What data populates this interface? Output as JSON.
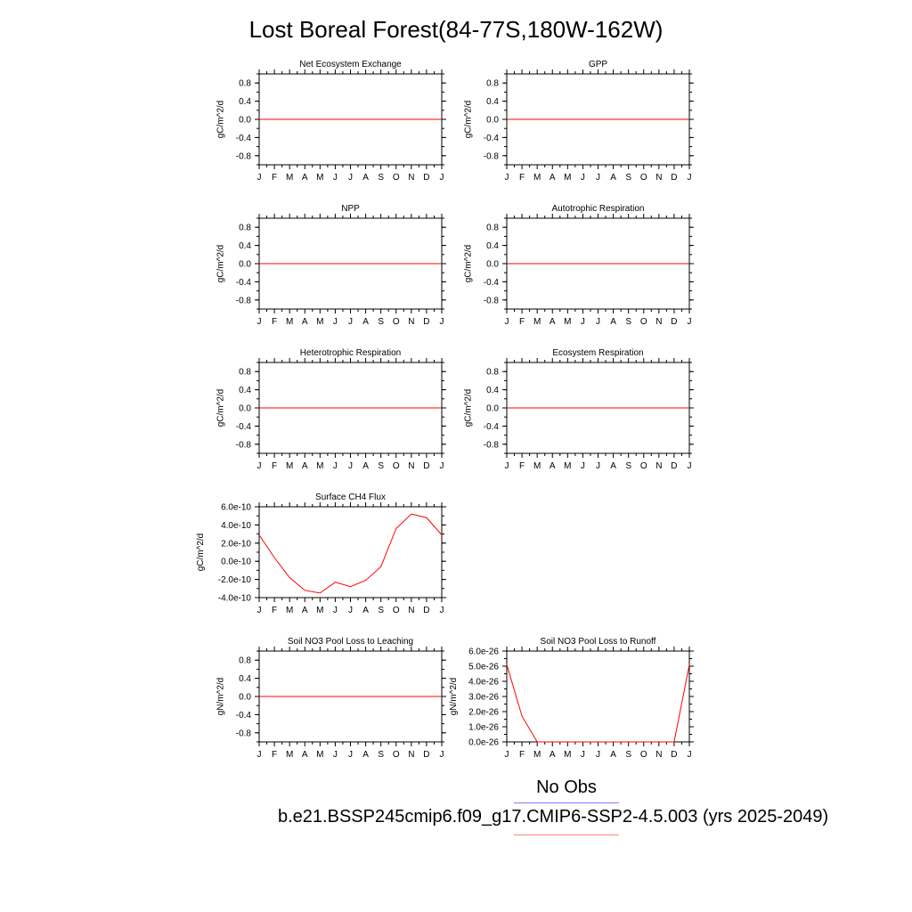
{
  "title": "Lost Boreal Forest(84-77S,180W-162W)",
  "legend": {
    "obs_label": "No Obs",
    "obs_color": "#8080ff",
    "model_label": "b.e21.BSSP245cmip6.f09_g17.CMIP6-SSP2-4.5.003 (yrs 2025-2049)",
    "model_color": "#ff8080"
  },
  "months": [
    "J",
    "F",
    "M",
    "A",
    "M",
    "J",
    "J",
    "A",
    "S",
    "O",
    "N",
    "D",
    "J"
  ],
  "line_color": "#ff0000",
  "chart_data": [
    {
      "type": "line",
      "title": "Net Ecosystem Exchange",
      "ylabel": "gC/m^2/d",
      "ylim": [
        -1,
        1
      ],
      "yticks": [
        0.8,
        0.4,
        0.0,
        -0.4,
        -0.8
      ],
      "ytick_labels": [
        "0.8",
        "0.4",
        "0.0",
        "-0.4",
        "-0.8"
      ],
      "x": [
        "J",
        "F",
        "M",
        "A",
        "M",
        "J",
        "J",
        "A",
        "S",
        "O",
        "N",
        "D",
        "J"
      ],
      "series": [
        {
          "values": [
            0,
            0,
            0,
            0,
            0,
            0,
            0,
            0,
            0,
            0,
            0,
            0,
            0
          ]
        }
      ]
    },
    {
      "type": "line",
      "title": "GPP",
      "ylabel": "gC/m^2/d",
      "ylim": [
        -1,
        1
      ],
      "yticks": [
        0.8,
        0.4,
        0.0,
        -0.4,
        -0.8
      ],
      "ytick_labels": [
        "0.8",
        "0.4",
        "0.0",
        "-0.4",
        "-0.8"
      ],
      "x": [
        "J",
        "F",
        "M",
        "A",
        "M",
        "J",
        "J",
        "A",
        "S",
        "O",
        "N",
        "D",
        "J"
      ],
      "series": [
        {
          "values": [
            0,
            0,
            0,
            0,
            0,
            0,
            0,
            0,
            0,
            0,
            0,
            0,
            0
          ]
        }
      ]
    },
    {
      "type": "line",
      "title": "NPP",
      "ylabel": "gC/m^2/d",
      "ylim": [
        -1,
        1
      ],
      "yticks": [
        0.8,
        0.4,
        0.0,
        -0.4,
        -0.8
      ],
      "ytick_labels": [
        "0.8",
        "0.4",
        "0.0",
        "-0.4",
        "-0.8"
      ],
      "x": [
        "J",
        "F",
        "M",
        "A",
        "M",
        "J",
        "J",
        "A",
        "S",
        "O",
        "N",
        "D",
        "J"
      ],
      "series": [
        {
          "values": [
            0,
            0,
            0,
            0,
            0,
            0,
            0,
            0,
            0,
            0,
            0,
            0,
            0
          ]
        }
      ]
    },
    {
      "type": "line",
      "title": "Autotrophic Respiration",
      "ylabel": "gC/m^2/d",
      "ylim": [
        -1,
        1
      ],
      "yticks": [
        0.8,
        0.4,
        0.0,
        -0.4,
        -0.8
      ],
      "ytick_labels": [
        "0.8",
        "0.4",
        "0.0",
        "-0.4",
        "-0.8"
      ],
      "x": [
        "J",
        "F",
        "M",
        "A",
        "M",
        "J",
        "J",
        "A",
        "S",
        "O",
        "N",
        "D",
        "J"
      ],
      "series": [
        {
          "values": [
            0,
            0,
            0,
            0,
            0,
            0,
            0,
            0,
            0,
            0,
            0,
            0,
            0
          ]
        }
      ]
    },
    {
      "type": "line",
      "title": "Heterotrophic Respiration",
      "ylabel": "gC/m^2/d",
      "ylim": [
        -1,
        1
      ],
      "yticks": [
        0.8,
        0.4,
        0.0,
        -0.4,
        -0.8
      ],
      "ytick_labels": [
        "0.8",
        "0.4",
        "0.0",
        "-0.4",
        "-0.8"
      ],
      "x": [
        "J",
        "F",
        "M",
        "A",
        "M",
        "J",
        "J",
        "A",
        "S",
        "O",
        "N",
        "D",
        "J"
      ],
      "series": [
        {
          "values": [
            0,
            0,
            0,
            0,
            0,
            0,
            0,
            0,
            0,
            0,
            0,
            0,
            0
          ]
        }
      ]
    },
    {
      "type": "line",
      "title": "Ecosystem Respiration",
      "ylabel": "gC/m^2/d",
      "ylim": [
        -1,
        1
      ],
      "yticks": [
        0.8,
        0.4,
        0.0,
        -0.4,
        -0.8
      ],
      "ytick_labels": [
        "0.8",
        "0.4",
        "0.0",
        "-0.4",
        "-0.8"
      ],
      "x": [
        "J",
        "F",
        "M",
        "A",
        "M",
        "J",
        "J",
        "A",
        "S",
        "O",
        "N",
        "D",
        "J"
      ],
      "series": [
        {
          "values": [
            0,
            0,
            0,
            0,
            0,
            0,
            0,
            0,
            0,
            0,
            0,
            0,
            0
          ]
        }
      ]
    },
    {
      "type": "line",
      "title": "Surface CH4 Flux",
      "ylabel": "gC/m^2/d",
      "ylim": [
        -4e-10,
        6e-10
      ],
      "yticks": [
        6e-10,
        4e-10,
        2e-10,
        0,
        -2e-10,
        -4e-10
      ],
      "ytick_labels": [
        "6.0e-10",
        "4.0e-10",
        "2.0e-10",
        "0.0e-10",
        "-2.0e-10",
        "-4.0e-10"
      ],
      "x": [
        "J",
        "F",
        "M",
        "A",
        "M",
        "J",
        "J",
        "A",
        "S",
        "O",
        "N",
        "D",
        "J"
      ],
      "series": [
        {
          "values": [
            2.9e-10,
            4e-11,
            -1.8e-10,
            -3.2e-10,
            -3.5e-10,
            -2.3e-10,
            -2.8e-10,
            -2.1e-10,
            -6e-11,
            3.6e-10,
            5.2e-10,
            4.8e-10,
            2.9e-10
          ]
        }
      ]
    },
    {
      "type": "line",
      "title": "Soil NO3 Pool Loss to Leaching",
      "ylabel": "gN/m^2/d",
      "ylim": [
        -1,
        1
      ],
      "yticks": [
        0.8,
        0.4,
        0.0,
        -0.4,
        -0.8
      ],
      "ytick_labels": [
        "0.8",
        "0.4",
        "0.0",
        "-0.4",
        "-0.8"
      ],
      "x": [
        "J",
        "F",
        "M",
        "A",
        "M",
        "J",
        "J",
        "A",
        "S",
        "O",
        "N",
        "D",
        "J"
      ],
      "series": [
        {
          "values": [
            0,
            0,
            0,
            0,
            0,
            0,
            0,
            0,
            0,
            0,
            0,
            0,
            0
          ]
        }
      ]
    },
    {
      "type": "line",
      "title": "Soil NO3 Pool Loss to Runoff",
      "ylabel": "gN/m^2/d",
      "ylim": [
        0,
        6e-26
      ],
      "yticks": [
        6e-26,
        5e-26,
        4e-26,
        3e-26,
        2e-26,
        1e-26,
        0
      ],
      "ytick_labels": [
        "6.0e-26",
        "5.0e-26",
        "4.0e-26",
        "3.0e-26",
        "2.0e-26",
        "1.0e-26",
        "0.0e-26"
      ],
      "x": [
        "J",
        "F",
        "M",
        "A",
        "M",
        "J",
        "J",
        "A",
        "S",
        "O",
        "N",
        "D",
        "J"
      ],
      "series": [
        {
          "values": [
            5.1e-26,
            1.7e-26,
            0,
            0,
            0,
            0,
            0,
            0,
            0,
            0,
            0,
            0,
            5.1e-26
          ]
        }
      ]
    }
  ]
}
